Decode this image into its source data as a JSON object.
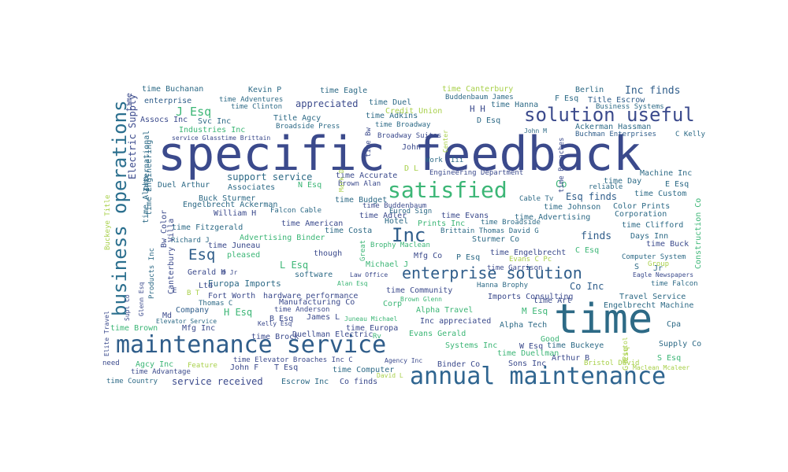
{
  "words": [
    {
      "text": "specific feedback",
      "color": "#3b4a8c"
    },
    {
      "text": "time",
      "color": "#2d6a86"
    },
    {
      "text": "maintenance service",
      "color": "#2f5d8a"
    },
    {
      "text": "annual maintenance",
      "color": "#2f6590"
    },
    {
      "text": "business operations",
      "color": "#2b6f8e"
    },
    {
      "text": "satisfied",
      "color": "#3cb676"
    },
    {
      "text": "solution useful",
      "color": "#3b4a8c"
    },
    {
      "text": "enterprise solution",
      "color": "#2f5d8a"
    },
    {
      "text": "Inc",
      "color": "#2f5d8a"
    },
    {
      "text": "Esq",
      "color": "#2f5d8a"
    },
    {
      "text": "Inc finds",
      "color": "#2f5d8a"
    },
    {
      "text": "J Esq",
      "color": "#3cb676"
    },
    {
      "text": "support service",
      "color": "#2d6a86"
    },
    {
      "text": "time Buchanan",
      "color": "#2d6a86"
    },
    {
      "text": "Kevin P",
      "color": "#2d6a86"
    },
    {
      "text": "time Eagle",
      "color": "#2d6a86"
    },
    {
      "text": "time Canterbury",
      "color": "#a8d04a"
    },
    {
      "text": "Berlin",
      "color": "#2d6a86"
    },
    {
      "text": "enterprise",
      "color": "#2f5d8a"
    },
    {
      "text": "time Adventures",
      "color": "#2d6a86"
    },
    {
      "text": "Title Escrow",
      "color": "#2f5d8a"
    },
    {
      "text": "time Clinton",
      "color": "#2d6a86"
    },
    {
      "text": "appreciated",
      "color": "#3b4a8c"
    },
    {
      "text": "time Duel",
      "color": "#2d6a86"
    },
    {
      "text": "Buddenbaum James",
      "color": "#2d6a86"
    },
    {
      "text": "F Esq",
      "color": "#2d6a86"
    },
    {
      "text": "Business Systems",
      "color": "#2d6a86"
    },
    {
      "text": "Assocs Inc",
      "color": "#3b4a8c"
    },
    {
      "text": "Svc Inc",
      "color": "#2d6a86"
    },
    {
      "text": "Title Agcy",
      "color": "#2d6a86"
    },
    {
      "text": "time Adkins",
      "color": "#2d6a86"
    },
    {
      "text": "Credit Union",
      "color": "#a8d04a"
    },
    {
      "text": "time Hanna",
      "color": "#2d6a86"
    },
    {
      "text": "H H",
      "color": "#3b4a8c"
    },
    {
      "text": "Industries Inc",
      "color": "#3cb676"
    },
    {
      "text": "Broadside Press",
      "color": "#2d6a86"
    },
    {
      "text": "time Broadway",
      "color": "#2d6a86"
    },
    {
      "text": "D Esq",
      "color": "#2d6a86"
    },
    {
      "text": "Ackerman Hassman",
      "color": "#2d6a86"
    },
    {
      "text": "John M",
      "color": "#2d6a86"
    },
    {
      "text": "Buchman Enterprises",
      "color": "#2f5d8a"
    },
    {
      "text": "C Kelly",
      "color": "#2d6a86"
    },
    {
      "text": "service Glasstime Brittain",
      "color": "#3b4a8c"
    },
    {
      "text": "Broadway Suites",
      "color": "#3b4a8c"
    },
    {
      "text": "John W",
      "color": "#3b4a8c"
    },
    {
      "text": "Work",
      "color": "#2d6a86"
    },
    {
      "text": "Iii",
      "color": "#2d6a86"
    },
    {
      "text": "Engineering Department",
      "color": "#3b4a8c"
    },
    {
      "text": "D L",
      "color": "#a8d04a"
    },
    {
      "text": "Machine Inc",
      "color": "#2d6a86"
    },
    {
      "text": "Duel Arthur",
      "color": "#2d6a86"
    },
    {
      "text": "time Accurate",
      "color": "#3b4a8c"
    },
    {
      "text": "Brown Alan",
      "color": "#3b4a8c"
    },
    {
      "text": "Co",
      "color": "#3cb676"
    },
    {
      "text": "time Day",
      "color": "#2d6a86"
    },
    {
      "text": "E Esq",
      "color": "#2d6a86"
    },
    {
      "text": "reliable",
      "color": "#2d6a86"
    },
    {
      "text": "Associates",
      "color": "#2d6a86"
    },
    {
      "text": "N Esq",
      "color": "#3cb676"
    },
    {
      "text": "time Custom",
      "color": "#2d6a86"
    },
    {
      "text": "Buck Sturmer",
      "color": "#2d6a86"
    },
    {
      "text": "Engelbrecht Ackerman",
      "color": "#2d6a86"
    },
    {
      "text": "time Budget",
      "color": "#2d6a86"
    },
    {
      "text": "Cable Tv",
      "color": "#2d6a86"
    },
    {
      "text": "Esq finds",
      "color": "#2f5d8a"
    },
    {
      "text": "William H",
      "color": "#3b4a8c"
    },
    {
      "text": "Falcon Cable",
      "color": "#2d6a86"
    },
    {
      "text": "time Adler",
      "color": "#3b4a8c"
    },
    {
      "text": "time Buddenbaum",
      "color": "#3b4a8c"
    },
    {
      "text": "Eurod Sign",
      "color": "#2d6a86"
    },
    {
      "text": "time Johnson",
      "color": "#2d6a86"
    },
    {
      "text": "Color Prints",
      "color": "#2d6a86"
    },
    {
      "text": "Corporation",
      "color": "#2d6a86"
    },
    {
      "text": "time Evans",
      "color": "#3b4a8c"
    },
    {
      "text": "time Advertising",
      "color": "#2d6a86"
    },
    {
      "text": "time Fitzgerald",
      "color": "#2d6a86"
    },
    {
      "text": "time American",
      "color": "#3b4a8c"
    },
    {
      "text": "Hotel",
      "color": "#2d6a86"
    },
    {
      "text": "Prints Inc",
      "color": "#3cb676"
    },
    {
      "text": "time Broadside",
      "color": "#2d6a86"
    },
    {
      "text": "time Clifford",
      "color": "#2d6a86"
    },
    {
      "text": "time Costa",
      "color": "#2d6a86"
    },
    {
      "text": "Brittain Thomas David G",
      "color": "#2d6a86"
    },
    {
      "text": "Sturmer Co",
      "color": "#2d6a86"
    },
    {
      "text": "finds",
      "color": "#2f5d8a"
    },
    {
      "text": "Days Inn",
      "color": "#2d6a86"
    },
    {
      "text": "Advertising Binder",
      "color": "#3cb676"
    },
    {
      "text": "time Buck",
      "color": "#3b4a8c"
    },
    {
      "text": "time Juneau",
      "color": "#3b4a8c"
    },
    {
      "text": "Brophy Maclean",
      "color": "#3cb676"
    },
    {
      "text": "time Engelbrecht",
      "color": "#3b4a8c"
    },
    {
      "text": "C Esq",
      "color": "#3cb676"
    },
    {
      "text": "pleased",
      "color": "#3cb676"
    },
    {
      "text": "though",
      "color": "#3b4a8c"
    },
    {
      "text": "Mfg Co",
      "color": "#3b4a8c"
    },
    {
      "text": "P Esq",
      "color": "#2d6a86"
    },
    {
      "text": "Evans C Pc",
      "color": "#a8d04a"
    },
    {
      "text": "Computer System",
      "color": "#2d6a86"
    },
    {
      "text": "L Esq",
      "color": "#3cb676"
    },
    {
      "text": "Michael J",
      "color": "#3cb676"
    },
    {
      "text": "Group",
      "color": "#a8d04a"
    },
    {
      "text": "S",
      "color": "#2d6a86"
    },
    {
      "text": "Jr",
      "color": "#2d6a86"
    },
    {
      "text": "Gerald H",
      "color": "#3b4a8c"
    },
    {
      "text": "D Jr",
      "color": "#3b4a8c"
    },
    {
      "text": "software",
      "color": "#2d6a86"
    },
    {
      "text": "Law Office",
      "color": "#3b4a8c"
    },
    {
      "text": "Eagle Newspapers",
      "color": "#3b4a8c"
    },
    {
      "text": "Co Inc",
      "color": "#2f5d8a"
    },
    {
      "text": "Europa Imports",
      "color": "#2d6a86"
    },
    {
      "text": "Alan Esq",
      "color": "#3cb676"
    },
    {
      "text": "Hanna Brophy",
      "color": "#2d6a86"
    },
    {
      "text": "time Falcon",
      "color": "#2d6a86"
    },
    {
      "text": "Ltd",
      "color": "#3b4a8c"
    },
    {
      "text": "time Community",
      "color": "#3b4a8c"
    },
    {
      "text": "Travel Service",
      "color": "#2d6a86"
    },
    {
      "text": "Fort Worth",
      "color": "#3b4a8c"
    },
    {
      "text": "hardware performance",
      "color": "#3b4a8c"
    },
    {
      "text": "Imports Consulting",
      "color": "#3b4a8c"
    },
    {
      "text": "Brown Glenn",
      "color": "#3cb676"
    },
    {
      "text": "time Art",
      "color": "#3b4a8c"
    },
    {
      "text": "Engelbrecht Machine",
      "color": "#2d6a86"
    },
    {
      "text": "Thomas C",
      "color": "#2d6a86"
    },
    {
      "text": "Manufacturing Co",
      "color": "#3b4a8c"
    },
    {
      "text": "Corp",
      "color": "#3cb676"
    },
    {
      "text": "Company",
      "color": "#2f5d8a"
    },
    {
      "text": "H Esq",
      "color": "#3cb676"
    },
    {
      "text": "time Anderson",
      "color": "#3b4a8c"
    },
    {
      "text": "Alpha Travel",
      "color": "#3cb676"
    },
    {
      "text": "M Esq",
      "color": "#3cb676"
    },
    {
      "text": "Md",
      "color": "#3b4a8c"
    },
    {
      "text": "B Esq",
      "color": "#3b4a8c"
    },
    {
      "text": "James L",
      "color": "#3b4a8c"
    },
    {
      "text": "Inc appreciated",
      "color": "#3b4a8c"
    },
    {
      "text": "Elevator Service",
      "color": "#2d6a86"
    },
    {
      "text": "Kelly Esq",
      "color": "#3b4a8c"
    },
    {
      "text": "Juneau Michael",
      "color": "#3cb676"
    },
    {
      "text": "Alpha Tech",
      "color": "#2d6a86"
    },
    {
      "text": "Cpa",
      "color": "#2d6a86"
    },
    {
      "text": "time Brown",
      "color": "#3cb676"
    },
    {
      "text": "Mfg Inc",
      "color": "#3b4a8c"
    },
    {
      "text": "time Europa",
      "color": "#3b4a8c"
    },
    {
      "text": "time Brock",
      "color": "#3b4a8c"
    },
    {
      "text": "Duellman Electric",
      "color": "#3b4a8c"
    },
    {
      "text": "Rv",
      "color": "#3cb676"
    },
    {
      "text": "Evans Gerald",
      "color": "#3cb676"
    },
    {
      "text": "Good",
      "color": "#3cb676"
    },
    {
      "text": "Systems Inc",
      "color": "#3cb676"
    },
    {
      "text": "W Esq",
      "color": "#3b4a8c"
    },
    {
      "text": "time Buckeye",
      "color": "#2d6a86"
    },
    {
      "text": "Supply Co",
      "color": "#2d6a86"
    },
    {
      "text": "time Duellman",
      "color": "#3cb676"
    },
    {
      "text": "Arthur B",
      "color": "#3b4a8c"
    },
    {
      "text": "S Esq",
      "color": "#3cb676"
    },
    {
      "text": "need",
      "color": "#3b4a8c"
    },
    {
      "text": "Agcy Inc",
      "color": "#3cb676"
    },
    {
      "text": "time Elevator Broaches Inc C",
      "color": "#3b4a8c"
    },
    {
      "text": "Agency Inc",
      "color": "#3b4a8c"
    },
    {
      "text": "Feature",
      "color": "#a8d04a"
    },
    {
      "text": "John F",
      "color": "#3b4a8c"
    },
    {
      "text": "T Esq",
      "color": "#3b4a8c"
    },
    {
      "text": "Binder Co",
      "color": "#3b4a8c"
    },
    {
      "text": "Sons Inc",
      "color": "#3b4a8c"
    },
    {
      "text": "Bristol David",
      "color": "#a8d04a"
    },
    {
      "text": "time Advantage",
      "color": "#3b4a8c"
    },
    {
      "text": "time Computer",
      "color": "#2d6a86"
    },
    {
      "text": "David L",
      "color": "#a8d04a"
    },
    {
      "text": "Maclean Mcaleer",
      "color": "#a8d04a"
    },
    {
      "text": "time Country",
      "color": "#2d6a86"
    },
    {
      "text": "service received",
      "color": "#3b4a8c"
    },
    {
      "text": "Escrow Inc",
      "color": "#2d6a86"
    },
    {
      "text": "Co finds",
      "color": "#3b4a8c"
    },
    {
      "text": "time Garrison",
      "color": "#3b4a8c"
    },
    {
      "text": "Richard J",
      "color": "#2d6a86"
    },
    {
      "text": "B T",
      "color": "#a8d04a"
    },
    {
      "text": "E",
      "color": "#3b4a8c"
    },
    {
      "text": "Construction Co",
      "color": "#3cb676",
      "vertical": true
    },
    {
      "text": "Electric Supply",
      "color": "#3b4a8c",
      "vertical": true
    },
    {
      "text": "International",
      "color": "#2d6a86",
      "vertical": true
    },
    {
      "text": "time Engineering",
      "color": "#2d6a86",
      "vertical": true
    },
    {
      "text": "time Alpha",
      "color": "#2d6a86",
      "vertical": true
    },
    {
      "text": "Buckeye Title",
      "color": "#a8d04a",
      "vertical": true
    },
    {
      "text": "Elite Travel",
      "color": "#3b4a8c",
      "vertical": true
    },
    {
      "text": "Supl Co",
      "color": "#3b4a8c",
      "vertical": true
    },
    {
      "text": "Glenn Esq",
      "color": "#3b4a8c",
      "vertical": true
    },
    {
      "text": "Products Inc",
      "color": "#2d6a86",
      "vertical": true
    },
    {
      "text": "Bw Color",
      "color": "#3b4a8c",
      "vertical": true
    },
    {
      "text": "Canterbury Villa",
      "color": "#3b4a8c",
      "vertical": true
    },
    {
      "text": "Great",
      "color": "#3cb676",
      "vertical": true
    },
    {
      "text": "Mark D",
      "color": "#a8d04a",
      "vertical": true
    },
    {
      "text": "time Bw",
      "color": "#3b4a8c",
      "vertical": true
    },
    {
      "text": "Center",
      "color": "#a8d04a",
      "vertical": true
    },
    {
      "text": "time Broaches",
      "color": "#3b4a8c",
      "vertical": true
    },
    {
      "text": "Bristol",
      "color": "#a8d04a",
      "vertical": true
    },
    {
      "text": "G Esq",
      "color": "#a8d04a",
      "vertical": true
    },
    {
      "text": "time",
      "color": "#3b4a8c",
      "vertical": true
    }
  ]
}
